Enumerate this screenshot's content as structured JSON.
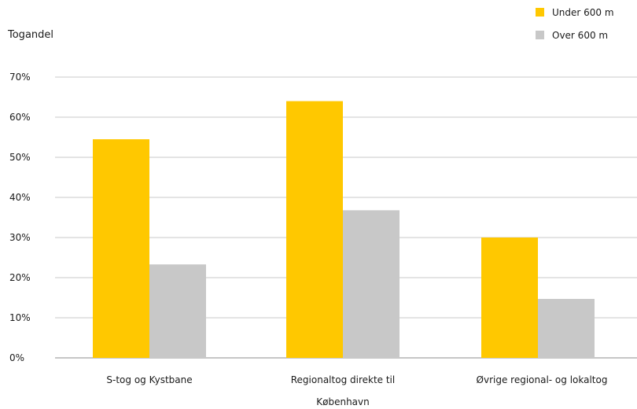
{
  "chart_data": {
    "type": "bar",
    "title": "",
    "ylabel": "Togandel",
    "xlabel": "",
    "ylim": [
      0,
      70
    ],
    "y_ticks": [
      "0%",
      "10%",
      "20%",
      "30%",
      "40%",
      "50%",
      "60%",
      "70%"
    ],
    "y_tick_values": [
      0,
      10,
      20,
      30,
      40,
      50,
      60,
      70
    ],
    "grid": true,
    "legend_position": "top-right",
    "categories": [
      [
        "S-tog og Kystbane"
      ],
      [
        "Regionaltog direkte til",
        "København"
      ],
      [
        "Øvrige regional- og lokaltog"
      ]
    ],
    "series": [
      {
        "name": "Under 600 m",
        "color": "#FFC800",
        "values": [
          54.5,
          64,
          30
        ]
      },
      {
        "name": "Over 600 m",
        "color": "#C8C8C8",
        "values": [
          23.3,
          36.8,
          14.7
        ]
      }
    ]
  }
}
